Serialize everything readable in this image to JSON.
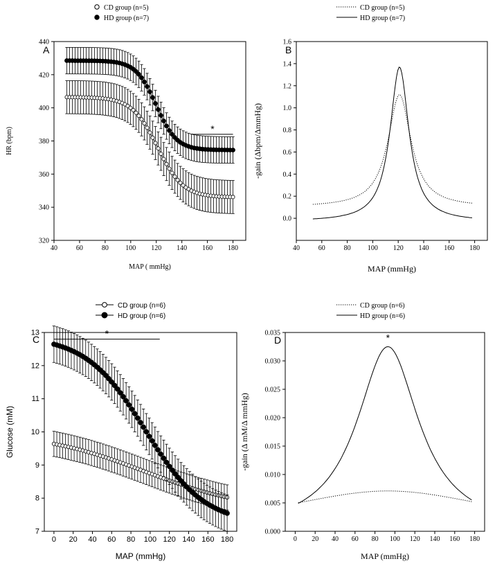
{
  "chart_data": [
    {
      "type": "line",
      "panel_label": "A",
      "title": "",
      "xlabel": "MAP ( mmHg)",
      "ylabel": "HR (bpm)",
      "xlim": [
        40,
        190
      ],
      "ylim": [
        320,
        440
      ],
      "xticks": [
        40,
        60,
        80,
        100,
        120,
        140,
        160,
        180
      ],
      "yticks": [
        320,
        340,
        360,
        380,
        400,
        420,
        440
      ],
      "legend": [
        "CD group (n=5)",
        "HD group (n=7)"
      ],
      "series": [
        {
          "name": "CD group (n=5)",
          "marker": "open-circle",
          "sigmoid": {
            "bottom": 346,
            "top": 406.5,
            "mid": 121,
            "scale": 10
          },
          "x_range": [
            50,
            180
          ],
          "points": 61,
          "error": 10
        },
        {
          "name": "HD group (n=7)",
          "marker": "filled-circle",
          "sigmoid": {
            "bottom": 374.5,
            "top": 428.5,
            "mid": 120,
            "scale": 8
          },
          "x_range": [
            50,
            180
          ],
          "points": 61,
          "error": 8
        }
      ],
      "significance": {
        "label": "*",
        "x_start": 148,
        "x_end": 180,
        "y": 384
      }
    },
    {
      "type": "line",
      "panel_label": "B",
      "title": "",
      "xlabel": "MAP (mmHg)",
      "ylabel": "-gain (Δbpm/ΔmmHg)",
      "xlim": [
        40,
        190
      ],
      "ylim": [
        -0.2,
        1.6
      ],
      "xticks": [
        40,
        60,
        80,
        100,
        120,
        140,
        160,
        180
      ],
      "yticks": [
        0.0,
        0.2,
        0.4,
        0.6,
        0.8,
        1.0,
        1.2,
        1.4,
        1.6
      ],
      "legend": [
        "CD group (n=5)",
        "HD group (n=7)"
      ],
      "series": [
        {
          "name": "CD group (n=5)",
          "style": "dotted",
          "peak_x": 121,
          "peak_y": 1.12,
          "width": 11,
          "baseline": 0.1,
          "x_range": [
            53,
            178
          ]
        },
        {
          "name": "HD group (n=7)",
          "style": "solid",
          "peak_x": 121,
          "peak_y": 1.37,
          "width": 9,
          "baseline": -0.03,
          "x_range": [
            53,
            178
          ]
        }
      ]
    },
    {
      "type": "line",
      "panel_label": "C",
      "title": "",
      "xlabel": "MAP (mmHg)",
      "ylabel": "Glucose (mM)",
      "xlim": [
        -10,
        190
      ],
      "ylim": [
        7,
        13
      ],
      "xticks": [
        0,
        20,
        40,
        60,
        80,
        100,
        120,
        140,
        160,
        180
      ],
      "yticks": [
        7,
        8,
        9,
        10,
        11,
        12,
        13
      ],
      "legend": [
        "CD group (n=6)",
        "HD group (n=6)"
      ],
      "series": [
        {
          "name": "CD group (n=6)",
          "marker": "open-circle",
          "sigmoid": {
            "bottom": 7.6,
            "top": 10.0,
            "mid": 95,
            "scale": 55
          },
          "x_range": [
            0,
            180
          ],
          "points": 61,
          "error": 0.38
        },
        {
          "name": "HD group (n=6)",
          "marker": "filled-circle",
          "sigmoid": {
            "bottom": 7.2,
            "top": 12.9,
            "mid": 95,
            "scale": 31
          },
          "x_range": [
            0,
            180
          ],
          "points": 61,
          "error": 0.55
        }
      ],
      "significance": {
        "label": "*",
        "x_start": 0,
        "x_end": 110,
        "y": 12.8
      }
    },
    {
      "type": "line",
      "panel_label": "D",
      "title": "",
      "xlabel": "MAP (mmHg)",
      "ylabel": "-gain (Δ mM/Δ mmHg)",
      "xlim": [
        -10,
        190
      ],
      "ylim": [
        0.0,
        0.035
      ],
      "xticks": [
        0,
        20,
        40,
        60,
        80,
        100,
        120,
        140,
        160,
        180
      ],
      "yticks": [
        0.0,
        0.005,
        0.01,
        0.015,
        0.02,
        0.025,
        0.03,
        0.035
      ],
      "ytick_labels": [
        "0.000",
        "0.005",
        "0.010",
        "0.015",
        "0.020",
        "0.025",
        "0.030",
        "0.035"
      ],
      "legend": [
        "CD group (n=6)",
        "HD group (n=6)"
      ],
      "series": [
        {
          "name": "CD group (n=6)",
          "style": "dotted",
          "peak_x": 93,
          "peak_y": 0.0071,
          "width": 140,
          "baseline": 0.0,
          "x_range": [
            3,
            177
          ]
        },
        {
          "name": "HD group (n=6)",
          "style": "solid",
          "peak_x": 93,
          "peak_y": 0.0325,
          "width": 38,
          "baseline": 0.0,
          "x_range": [
            3,
            177
          ]
        }
      ],
      "significance": {
        "label": "*",
        "x": 93,
        "y": 0.0337
      }
    }
  ]
}
